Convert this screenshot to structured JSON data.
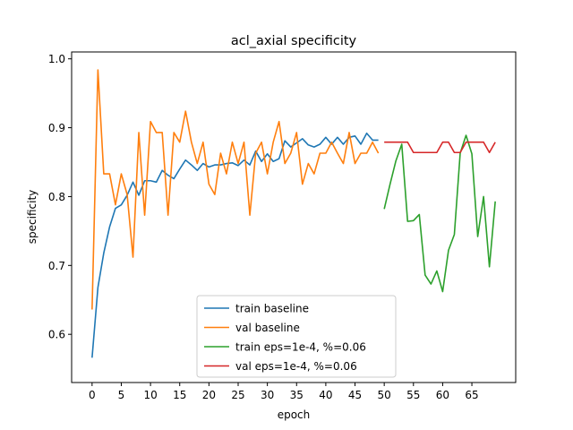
{
  "chart_data": {
    "type": "line",
    "title": "acl_axial specificity",
    "xlabel": "epoch",
    "ylabel": "specificity",
    "xlim": [
      -3.5,
      72.5
    ],
    "ylim": [
      0.53,
      1.01
    ],
    "xticks": [
      0,
      5,
      10,
      15,
      20,
      25,
      30,
      35,
      40,
      45,
      50,
      55,
      60,
      65
    ],
    "yticks": [
      0.6,
      0.7,
      0.8,
      0.9,
      1.0
    ],
    "ytick_labels": [
      "0.6",
      "0.7",
      "0.8",
      "0.9",
      "1.0"
    ],
    "grid": false,
    "legend_position": "lower center",
    "series": [
      {
        "name": "train baseline",
        "color": "#1f77b4",
        "x": [
          0,
          1,
          2,
          3,
          4,
          5,
          6,
          7,
          8,
          9,
          10,
          11,
          12,
          13,
          14,
          15,
          16,
          17,
          18,
          19,
          20,
          21,
          22,
          23,
          24,
          25,
          26,
          27,
          28,
          29,
          30,
          31,
          32,
          33,
          34,
          35,
          36,
          37,
          38,
          39,
          40,
          41,
          42,
          43,
          44,
          45,
          46,
          47,
          48,
          49
        ],
        "y": [
          0.566,
          0.668,
          0.718,
          0.756,
          0.783,
          0.788,
          0.802,
          0.821,
          0.802,
          0.823,
          0.823,
          0.821,
          0.838,
          0.831,
          0.826,
          0.84,
          0.853,
          0.846,
          0.838,
          0.848,
          0.843,
          0.846,
          0.846,
          0.848,
          0.849,
          0.845,
          0.853,
          0.846,
          0.866,
          0.851,
          0.862,
          0.851,
          0.855,
          0.881,
          0.872,
          0.878,
          0.884,
          0.875,
          0.872,
          0.876,
          0.886,
          0.876,
          0.886,
          0.876,
          0.886,
          0.888,
          0.876,
          0.892,
          0.882,
          0.882
        ]
      },
      {
        "name": "val baseline",
        "color": "#ff7f0e",
        "x": [
          0,
          1,
          2,
          3,
          4,
          5,
          6,
          7,
          8,
          9,
          10,
          11,
          12,
          13,
          14,
          15,
          16,
          17,
          18,
          19,
          20,
          21,
          22,
          23,
          24,
          25,
          26,
          27,
          28,
          29,
          30,
          31,
          32,
          33,
          34,
          35,
          36,
          37,
          38,
          39,
          40,
          41,
          42,
          43,
          44,
          45,
          46,
          47,
          48,
          49
        ],
        "y": [
          0.636,
          0.984,
          0.833,
          0.833,
          0.788,
          0.833,
          0.803,
          0.712,
          0.893,
          0.773,
          0.909,
          0.893,
          0.893,
          0.773,
          0.893,
          0.879,
          0.924,
          0.879,
          0.848,
          0.879,
          0.818,
          0.803,
          0.863,
          0.833,
          0.879,
          0.848,
          0.879,
          0.773,
          0.863,
          0.879,
          0.833,
          0.879,
          0.909,
          0.848,
          0.863,
          0.893,
          0.818,
          0.848,
          0.833,
          0.863,
          0.863,
          0.879,
          0.863,
          0.848,
          0.893,
          0.848,
          0.863,
          0.863,
          0.879,
          0.863
        ]
      },
      {
        "name": "train eps=1e-4, %=0.06",
        "color": "#2ca02c",
        "x": [
          50,
          51,
          52,
          53,
          54,
          55,
          56,
          57,
          58,
          59,
          60,
          61,
          62,
          63,
          64,
          65,
          66,
          67,
          68,
          69
        ],
        "y": [
          0.782,
          0.818,
          0.852,
          0.876,
          0.764,
          0.765,
          0.774,
          0.686,
          0.673,
          0.692,
          0.662,
          0.722,
          0.745,
          0.863,
          0.889,
          0.862,
          0.742,
          0.8,
          0.698,
          0.793
        ]
      },
      {
        "name": "val eps=1e-4, %=0.06",
        "color": "#d62728",
        "x": [
          50,
          51,
          52,
          53,
          54,
          55,
          56,
          57,
          58,
          59,
          60,
          61,
          62,
          63,
          64,
          65,
          66,
          67,
          68,
          69
        ],
        "y": [
          0.879,
          0.879,
          0.879,
          0.879,
          0.879,
          0.864,
          0.864,
          0.864,
          0.864,
          0.864,
          0.879,
          0.879,
          0.864,
          0.864,
          0.879,
          0.879,
          0.879,
          0.879,
          0.864,
          0.879
        ]
      }
    ]
  }
}
